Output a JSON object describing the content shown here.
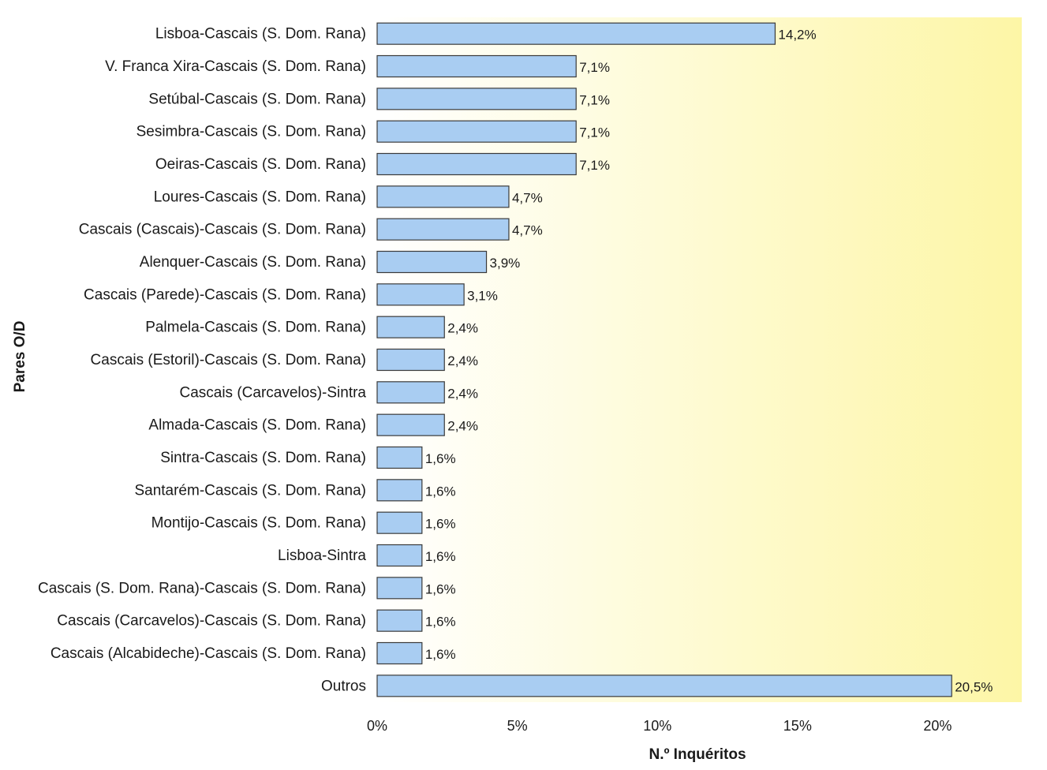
{
  "chart_data": {
    "type": "bar",
    "orientation": "horizontal",
    "categories": [
      "Lisboa-Cascais (S. Dom. Rana)",
      "V. Franca Xira-Cascais (S. Dom. Rana)",
      "Setúbal-Cascais (S. Dom. Rana)",
      "Sesimbra-Cascais (S. Dom. Rana)",
      "Oeiras-Cascais (S. Dom. Rana)",
      "Loures-Cascais (S. Dom. Rana)",
      "Cascais (Cascais)-Cascais (S. Dom. Rana)",
      "Alenquer-Cascais (S. Dom. Rana)",
      "Cascais (Parede)-Cascais (S. Dom. Rana)",
      "Palmela-Cascais (S. Dom. Rana)",
      "Cascais (Estoril)-Cascais (S. Dom. Rana)",
      "Cascais (Carcavelos)-Sintra",
      "Almada-Cascais (S. Dom. Rana)",
      "Sintra-Cascais (S. Dom. Rana)",
      "Santarém-Cascais (S. Dom. Rana)",
      "Montijo-Cascais (S. Dom. Rana)",
      "Lisboa-Sintra",
      "Cascais (S. Dom. Rana)-Cascais (S. Dom. Rana)",
      "Cascais (Carcavelos)-Cascais (S. Dom. Rana)",
      "Cascais (Alcabideche)-Cascais (S. Dom. Rana)",
      "Outros"
    ],
    "values": [
      14.2,
      7.1,
      7.1,
      7.1,
      7.1,
      4.7,
      4.7,
      3.9,
      3.1,
      2.4,
      2.4,
      2.4,
      2.4,
      1.6,
      1.6,
      1.6,
      1.6,
      1.6,
      1.6,
      1.6,
      20.5
    ],
    "data_labels": [
      "14,2%",
      "7,1%",
      "7,1%",
      "7,1%",
      "7,1%",
      "4,7%",
      "4,7%",
      "3,9%",
      "3,1%",
      "2,4%",
      "2,4%",
      "2,4%",
      "2,4%",
      "1,6%",
      "1,6%",
      "1,6%",
      "1,6%",
      "1,6%",
      "1,6%",
      "1,6%",
      "20,5%"
    ],
    "xticks": [
      0,
      5,
      10,
      15,
      20
    ],
    "xtick_labels": [
      "0%",
      "5%",
      "10%",
      "15%",
      "20%"
    ],
    "xlim": [
      0,
      23
    ],
    "xlabel": "N.º Inquéritos",
    "ylabel": "Pares O/D",
    "grid": false,
    "legend": "none",
    "colors": {
      "bar_fill": "#a9cdf2",
      "bar_stroke": "#3a3a3a",
      "plot_bg_left": "#ffffff",
      "plot_bg_right": "#fdf6a6"
    }
  }
}
